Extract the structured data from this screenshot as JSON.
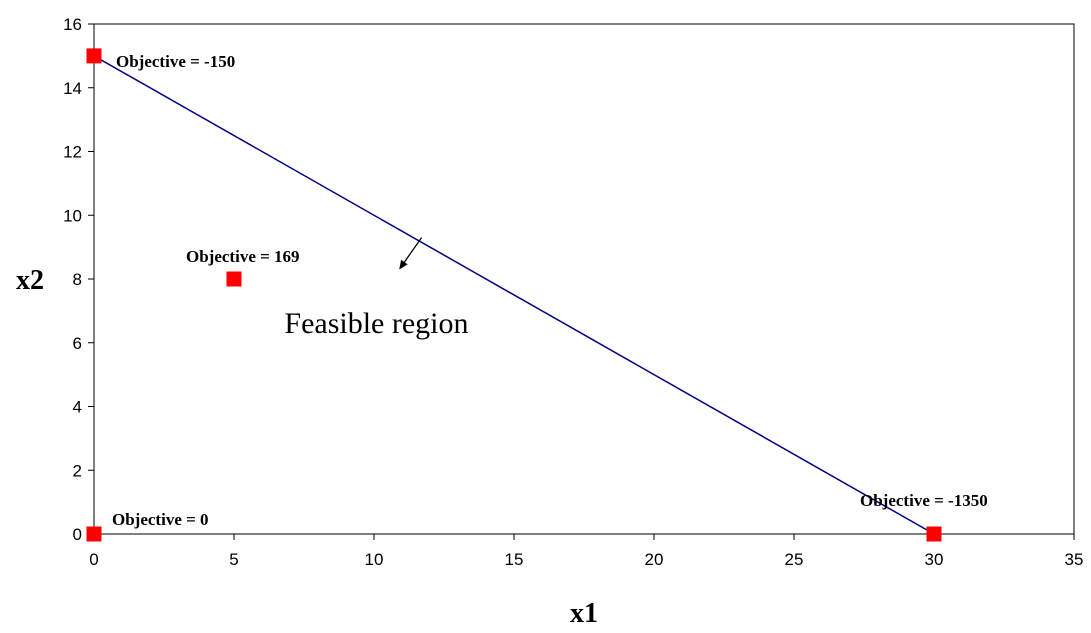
{
  "chart_data": {
    "type": "scatter",
    "title": "",
    "xlabel": "x1",
    "ylabel": "x2",
    "xlim": [
      0,
      35
    ],
    "ylim": [
      0,
      16
    ],
    "x_ticks": [
      0,
      5,
      10,
      15,
      20,
      25,
      30,
      35
    ],
    "y_ticks": [
      0,
      2,
      4,
      6,
      8,
      10,
      12,
      14,
      16
    ],
    "grid": false,
    "legend": "none",
    "points": [
      {
        "x": 0,
        "y": 15,
        "label": "Objective = -150"
      },
      {
        "x": 5,
        "y": 8,
        "label": "Objective = 169"
      },
      {
        "x": 0,
        "y": 0,
        "label": "Objective = 0"
      },
      {
        "x": 30,
        "y": 0,
        "label": "Objective = -1350"
      }
    ],
    "constraint_line": {
      "x": [
        0,
        30
      ],
      "y": [
        15,
        0
      ]
    },
    "region_annotation": {
      "text": "Feasible region",
      "arrow_from": [
        11.7,
        9.3
      ],
      "arrow_to": [
        10.9,
        8.3
      ]
    },
    "colors": {
      "points": "#ff0000",
      "line": "#000080",
      "axes": "#000000"
    }
  }
}
